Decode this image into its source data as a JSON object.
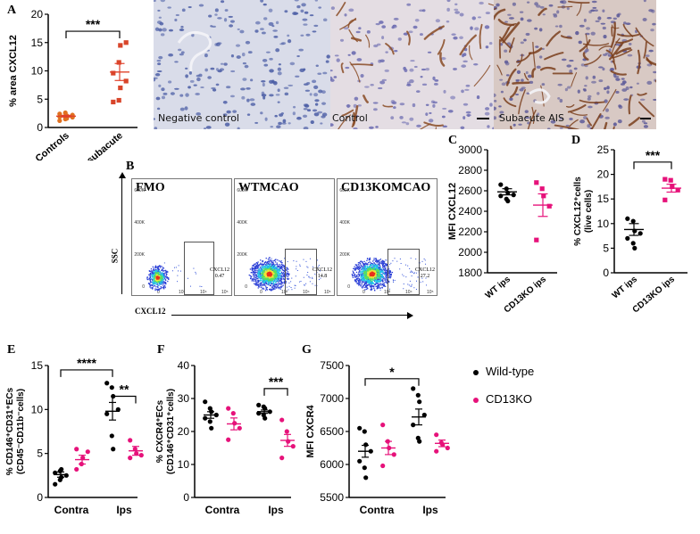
{
  "panels": {
    "A": "A",
    "B": "B",
    "C": "C",
    "D": "D",
    "E": "E",
    "F": "F",
    "G": "G"
  },
  "micrograph_captions": [
    "Negative control",
    "Control",
    "Subacute AIS"
  ],
  "facs": {
    "titles": [
      "FMO",
      "WTMCAO",
      "CD13KOMCAO"
    ],
    "gate_name": "CXCL12",
    "gate_values": [
      "0.47",
      "14.8",
      "27.2"
    ],
    "y_axis_label": "SSC",
    "x_axis_label": "CXCL12",
    "y_ticks": [
      "600K",
      "400K",
      "200K",
      "0"
    ],
    "x_ticks": [
      "0",
      "10³",
      "10⁴",
      "10⁵"
    ]
  },
  "legend": {
    "items": [
      {
        "label": "Wild-type",
        "color": "#000000"
      },
      {
        "label": "CD13KO",
        "color": "#e6127a"
      }
    ]
  },
  "colors": {
    "wt": "#000000",
    "ko": "#e6127a",
    "orange": "#e07020",
    "red": "#d8452a",
    "mean": "#e0402a"
  },
  "chart_data": [
    {
      "id": "A",
      "type": "scatter",
      "ylabel": "% area CXCL12",
      "ylim": [
        0,
        20
      ],
      "yticks": [
        0,
        5,
        10,
        15,
        20
      ],
      "categories": [
        "Controls",
        "AIS, subacute"
      ],
      "series": [
        {
          "name": "Controls",
          "values": [
            1.2,
            1.5,
            1.6,
            1.8,
            1.9,
            2.0,
            2.1,
            2.2,
            2.4,
            2.6
          ],
          "mean": 2.0,
          "sem": 0.15
        },
        {
          "name": "AIS, subacute",
          "values": [
            4.5,
            4.8,
            7.0,
            8.2,
            9.6,
            11.5,
            14.5,
            15.0
          ],
          "mean": 9.8,
          "sem": 1.5
        }
      ],
      "significance": "***"
    },
    {
      "id": "C",
      "type": "scatter",
      "ylabel": "MFI CXCL12",
      "ylim": [
        1800,
        3000
      ],
      "yticks": [
        1800,
        2000,
        2200,
        2400,
        2600,
        2800,
        3000
      ],
      "categories": [
        "WT ips",
        "CD13KO ips"
      ],
      "series": [
        {
          "name": "WT ips",
          "values": [
            2660,
            2620,
            2580,
            2560,
            2550,
            2520,
            2500
          ],
          "mean": 2590,
          "sem": 30
        },
        {
          "name": "CD13KO ips",
          "values": [
            2680,
            2620,
            2550,
            2450,
            2120
          ],
          "mean": 2460,
          "sem": 110
        }
      ]
    },
    {
      "id": "D",
      "type": "scatter",
      "ylabel": "% CXCL12⁺cells (live cells)",
      "ylim": [
        0,
        25
      ],
      "yticks": [
        0,
        5,
        10,
        15,
        20,
        25
      ],
      "categories": [
        "WT ips",
        "CD13KO ips"
      ],
      "series": [
        {
          "name": "WT ips",
          "values": [
            11.0,
            10.5,
            8.5,
            8.0,
            7.0,
            6.0,
            5.0
          ],
          "mean": 8.8,
          "sem": 1.2
        },
        {
          "name": "CD13KO ips",
          "values": [
            19.0,
            18.8,
            17.5,
            16.8,
            14.8
          ],
          "mean": 17.2,
          "sem": 0.8
        }
      ],
      "significance": "***"
    },
    {
      "id": "E",
      "type": "scatter",
      "ylabel": "% CD146⁺CD31⁺ECs (CD45⁻CD11b⁻cells)",
      "ylim": [
        0,
        15
      ],
      "yticks": [
        0,
        5,
        10,
        15
      ],
      "categories": [
        "Contra",
        "Ips"
      ],
      "series": [
        {
          "name": "Wild-type Contra",
          "values": [
            1.5,
            2.0,
            2.3,
            2.5,
            2.8,
            3.0,
            3.2
          ],
          "mean": 2.6,
          "sem": 0.3
        },
        {
          "name": "CD13KO Contra",
          "values": [
            3.2,
            3.8,
            4.5,
            5.2,
            5.5
          ],
          "mean": 4.3,
          "sem": 0.5
        },
        {
          "name": "Wild-type Ips",
          "values": [
            13.0,
            12.5,
            11.5,
            10.0,
            9.5,
            7.0,
            5.5
          ],
          "mean": 9.8,
          "sem": 1.0
        },
        {
          "name": "CD13KO Ips",
          "values": [
            6.5,
            5.5,
            5.0,
            4.8,
            4.5
          ],
          "mean": 5.3,
          "sem": 0.5
        }
      ],
      "significance": [
        "****",
        "**"
      ]
    },
    {
      "id": "F",
      "type": "scatter",
      "ylabel": "% CXCR4⁺ECs (CD146⁺CD31⁺cells)",
      "ylim": [
        0,
        40
      ],
      "yticks": [
        0,
        10,
        20,
        30,
        40
      ],
      "categories": [
        "Contra",
        "Ips"
      ],
      "series": [
        {
          "name": "Wild-type Contra",
          "values": [
            29.0,
            27.0,
            26.0,
            25.0,
            24.0,
            23.0,
            21.0
          ],
          "mean": 25.0,
          "sem": 1.0
        },
        {
          "name": "CD13KO Contra",
          "values": [
            27.0,
            25.5,
            22.5,
            21.0,
            17.5
          ],
          "mean": 22.3,
          "sem": 1.8
        },
        {
          "name": "Wild-type Ips",
          "values": [
            28.0,
            27.5,
            27.0,
            26.0,
            25.5,
            25.0,
            24.0
          ],
          "mean": 26.0,
          "sem": 0.5
        },
        {
          "name": "CD13KO Ips",
          "values": [
            23.5,
            20.0,
            17.0,
            15.5,
            12.0
          ],
          "mean": 17.3,
          "sem": 1.8
        }
      ],
      "significance": "***"
    },
    {
      "id": "G",
      "type": "scatter",
      "ylabel": "MFI CXCR4",
      "ylim": [
        5500,
        7500
      ],
      "yticks": [
        5500,
        6000,
        6500,
        7000,
        7500
      ],
      "categories": [
        "Contra",
        "Ips"
      ],
      "series": [
        {
          "name": "Wild-type Contra",
          "values": [
            6550,
            6500,
            6300,
            6200,
            6050,
            5950,
            5800
          ],
          "mean": 6200,
          "sem": 90
        },
        {
          "name": "CD13KO Contra",
          "values": [
            6600,
            6350,
            6250,
            6150,
            5980
          ],
          "mean": 6250,
          "sem": 100
        },
        {
          "name": "Wild-type Ips",
          "values": [
            7150,
            7050,
            6950,
            6750,
            6600,
            6400,
            6350
          ],
          "mean": 6720,
          "sem": 120
        },
        {
          "name": "CD13KO Ips",
          "values": [
            6450,
            6330,
            6300,
            6250,
            6200
          ],
          "mean": 6320,
          "sem": 50
        }
      ],
      "significance": "*"
    }
  ]
}
